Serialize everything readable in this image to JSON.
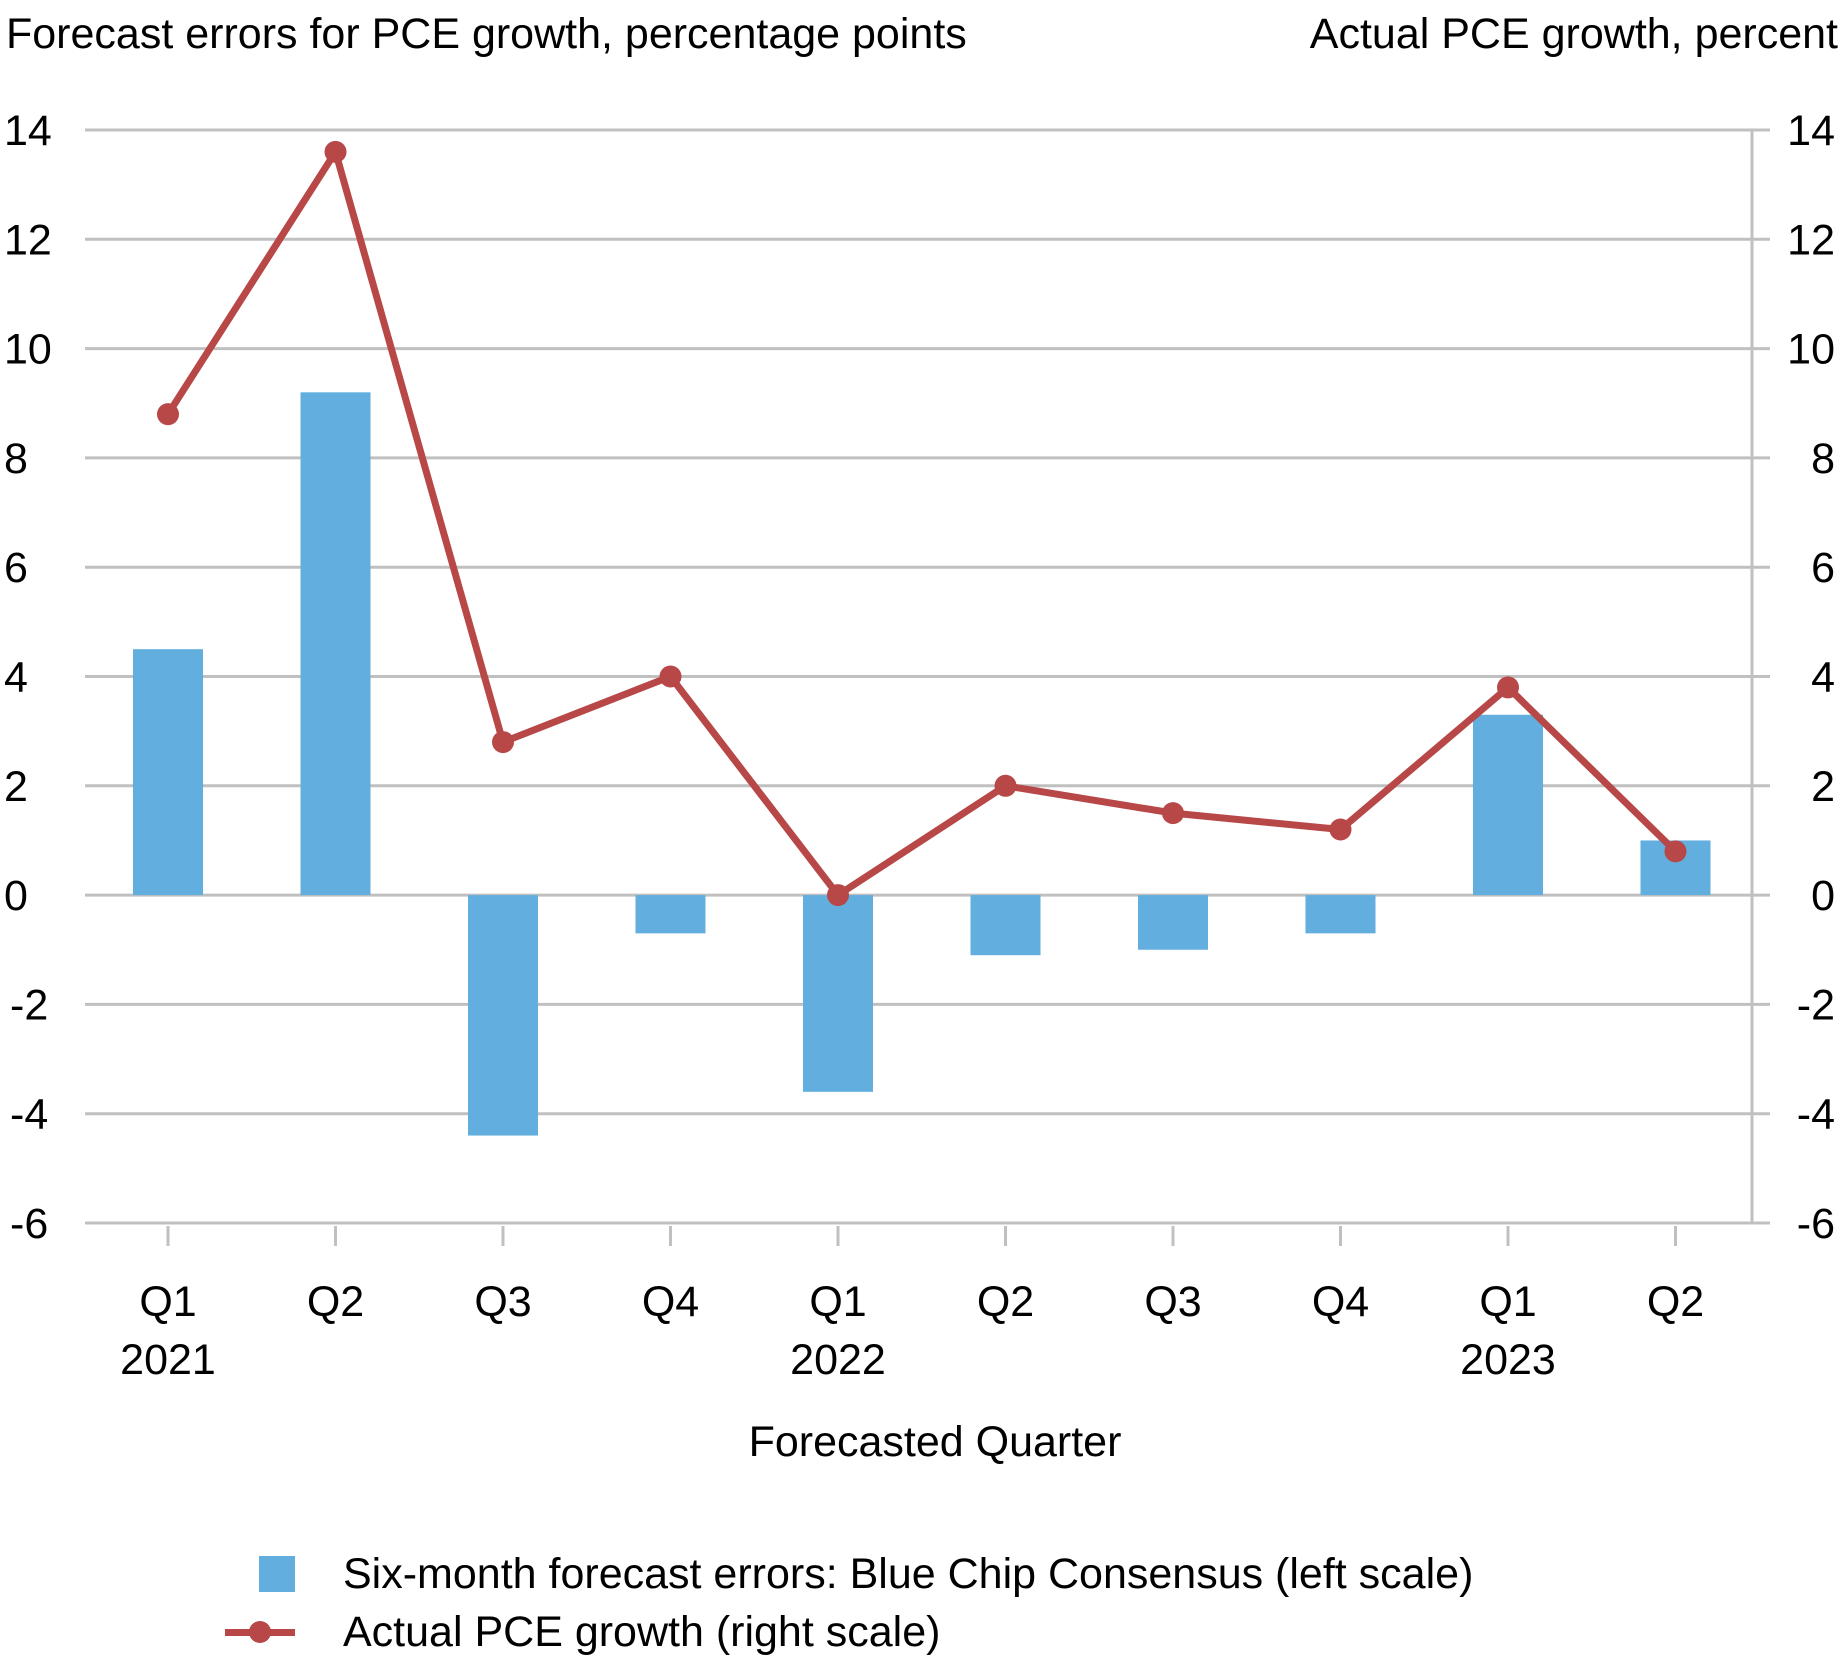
{
  "colors": {
    "bar": "#62AEDE",
    "line": "#B84747",
    "grid": "#C0C0C0",
    "text": "#000000"
  },
  "chart_data": {
    "type": "bar+line",
    "left_axis_title": "Forecast errors for PCE growth, percentage points",
    "right_axis_title": "Actual PCE growth, percent",
    "xlabel": "Forecasted Quarter",
    "categories": [
      "Q1 2021",
      "Q2 2021",
      "Q3 2021",
      "Q4 2021",
      "Q1 2022",
      "Q2 2022",
      "Q3 2022",
      "Q4 2022",
      "Q1 2023",
      "Q2 2023"
    ],
    "category_labels": [
      {
        "quarter": "Q1",
        "year": "2021"
      },
      {
        "quarter": "Q2",
        "year": ""
      },
      {
        "quarter": "Q3",
        "year": ""
      },
      {
        "quarter": "Q4",
        "year": ""
      },
      {
        "quarter": "Q1",
        "year": "2022"
      },
      {
        "quarter": "Q2",
        "year": ""
      },
      {
        "quarter": "Q3",
        "year": ""
      },
      {
        "quarter": "Q4",
        "year": ""
      },
      {
        "quarter": "Q1",
        "year": "2023"
      },
      {
        "quarter": "Q2",
        "year": ""
      }
    ],
    "left_ylim": [
      -6,
      14
    ],
    "right_ylim": [
      -6,
      14
    ],
    "yticks": [
      14,
      12,
      10,
      8,
      6,
      4,
      2,
      0,
      -2,
      -4,
      -6
    ],
    "grid": true,
    "legend_placement": "bottom",
    "series": [
      {
        "name": "Six-month forecast errors: Blue Chip Consensus (left scale)",
        "type": "bar",
        "axis": "left",
        "values": [
          4.5,
          9.2,
          -4.4,
          -0.7,
          -3.6,
          -1.1,
          -1.0,
          -0.7,
          3.3,
          1.0
        ]
      },
      {
        "name": "Actual PCE growth (right scale)",
        "type": "line",
        "axis": "right",
        "values": [
          8.8,
          13.6,
          2.8,
          4.0,
          0.0,
          2.0,
          1.5,
          1.2,
          3.8,
          0.8
        ]
      }
    ]
  }
}
